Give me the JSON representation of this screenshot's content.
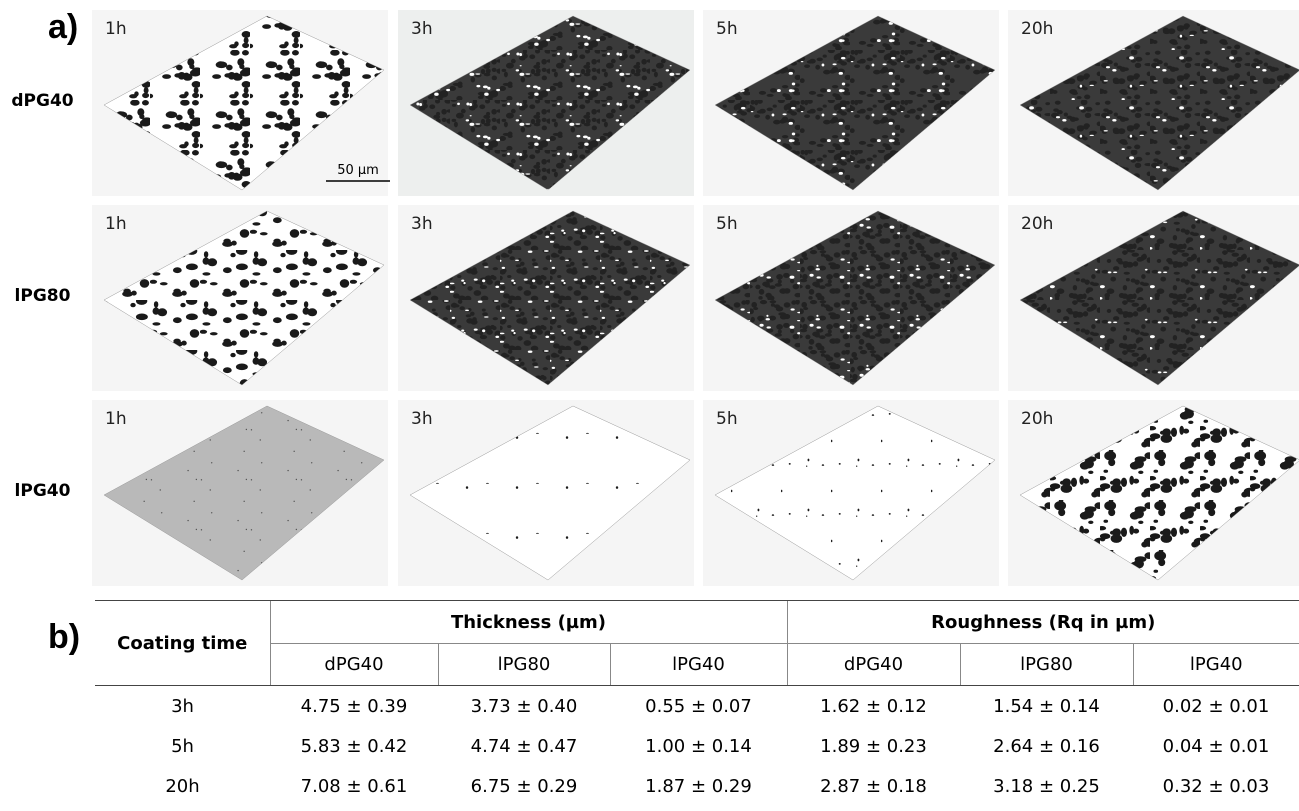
{
  "panel_a": {
    "label": "a)",
    "scale_bar": "50 µm",
    "rows": [
      {
        "name": "dPG40",
        "times": [
          "1h",
          "3h",
          "5h",
          "20h"
        ]
      },
      {
        "name": "lPG80",
        "times": [
          "1h",
          "3h",
          "5h",
          "20h"
        ]
      },
      {
        "name": "lPG40",
        "times": [
          "1h",
          "3h",
          "5h",
          "20h"
        ]
      }
    ]
  },
  "panel_b": {
    "label": "b)",
    "header": {
      "first": "Coating time",
      "groups": [
        "Thickness (µm)",
        "Roughness (Rq in µm)"
      ],
      "subheaders": [
        "dPG40",
        "lPG80",
        "lPG40",
        "dPG40",
        "lPG80",
        "lPG40"
      ]
    },
    "rows": [
      [
        "3h",
        "4.75 ± 0.39",
        "3.73 ± 0.40",
        "0.55 ± 0.07",
        "1.62 ± 0.12",
        "1.54 ± 0.14",
        "0.02 ± 0.01"
      ],
      [
        "5h",
        "5.83 ± 0.42",
        "4.74 ± 0.47",
        "1.00 ± 0.14",
        "1.89 ± 0.23",
        "2.64 ± 0.16",
        "0.04 ± 0.01"
      ],
      [
        "20h",
        "7.08 ± 0.61",
        "6.75 ± 0.29",
        "1.87 ± 0.29",
        "2.87 ± 0.18",
        "3.18 ± 0.25",
        "0.32 ± 0.03"
      ]
    ]
  }
}
